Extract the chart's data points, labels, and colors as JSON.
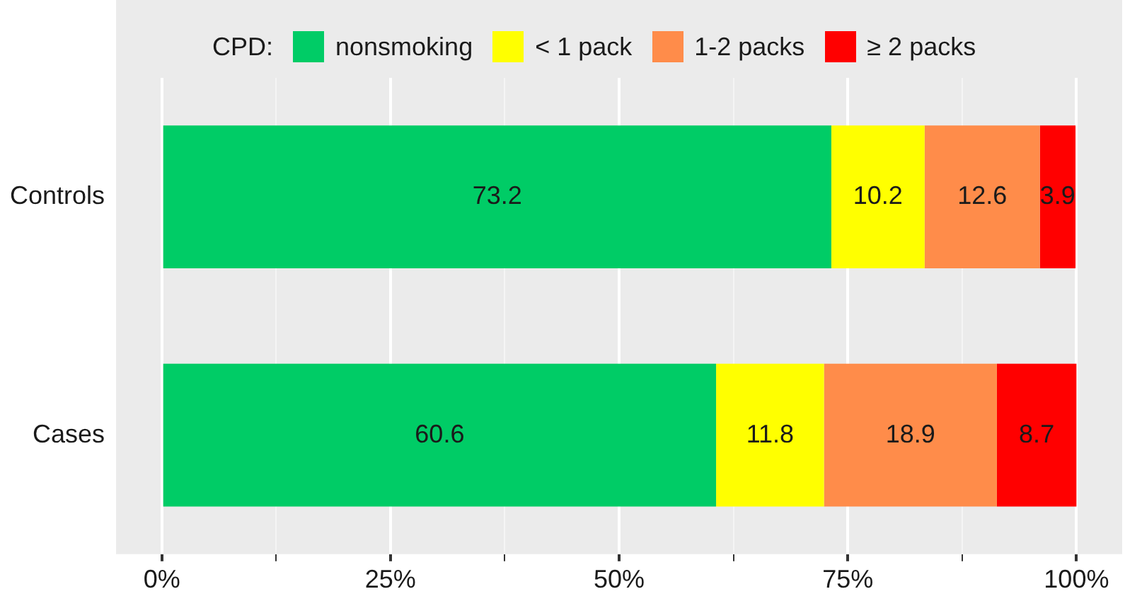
{
  "chart_data": {
    "type": "bar",
    "orientation": "horizontal",
    "stacked": true,
    "categories": [
      "Controls",
      "Cases"
    ],
    "series": [
      {
        "name": "nonsmoking",
        "color": "#00cc66",
        "values": [
          73.2,
          60.6
        ]
      },
      {
        "name": "< 1 pack",
        "color": "#ffff00",
        "values": [
          10.2,
          11.8
        ]
      },
      {
        "name": "1-2 packs",
        "color": "#ff8c4a",
        "values": [
          12.6,
          18.9
        ]
      },
      {
        "name": "≥ 2 packs",
        "color": "#ff0000",
        "values": [
          3.9,
          8.7
        ]
      }
    ],
    "legend_title": "CPD:",
    "legend": "top",
    "data_labels": true,
    "grid": "x",
    "xlim": [
      -5,
      105
    ],
    "xticks": [
      {
        "value": 0,
        "label": "0%"
      },
      {
        "value": 12.5,
        "label": null
      },
      {
        "value": 25,
        "label": "25%"
      },
      {
        "value": 37.5,
        "label": null
      },
      {
        "value": 50,
        "label": "50%"
      },
      {
        "value": 62.5,
        "label": null
      },
      {
        "value": 75,
        "label": "75%"
      },
      {
        "value": 87.5,
        "label": null
      },
      {
        "value": 100,
        "label": "100%"
      }
    ]
  }
}
